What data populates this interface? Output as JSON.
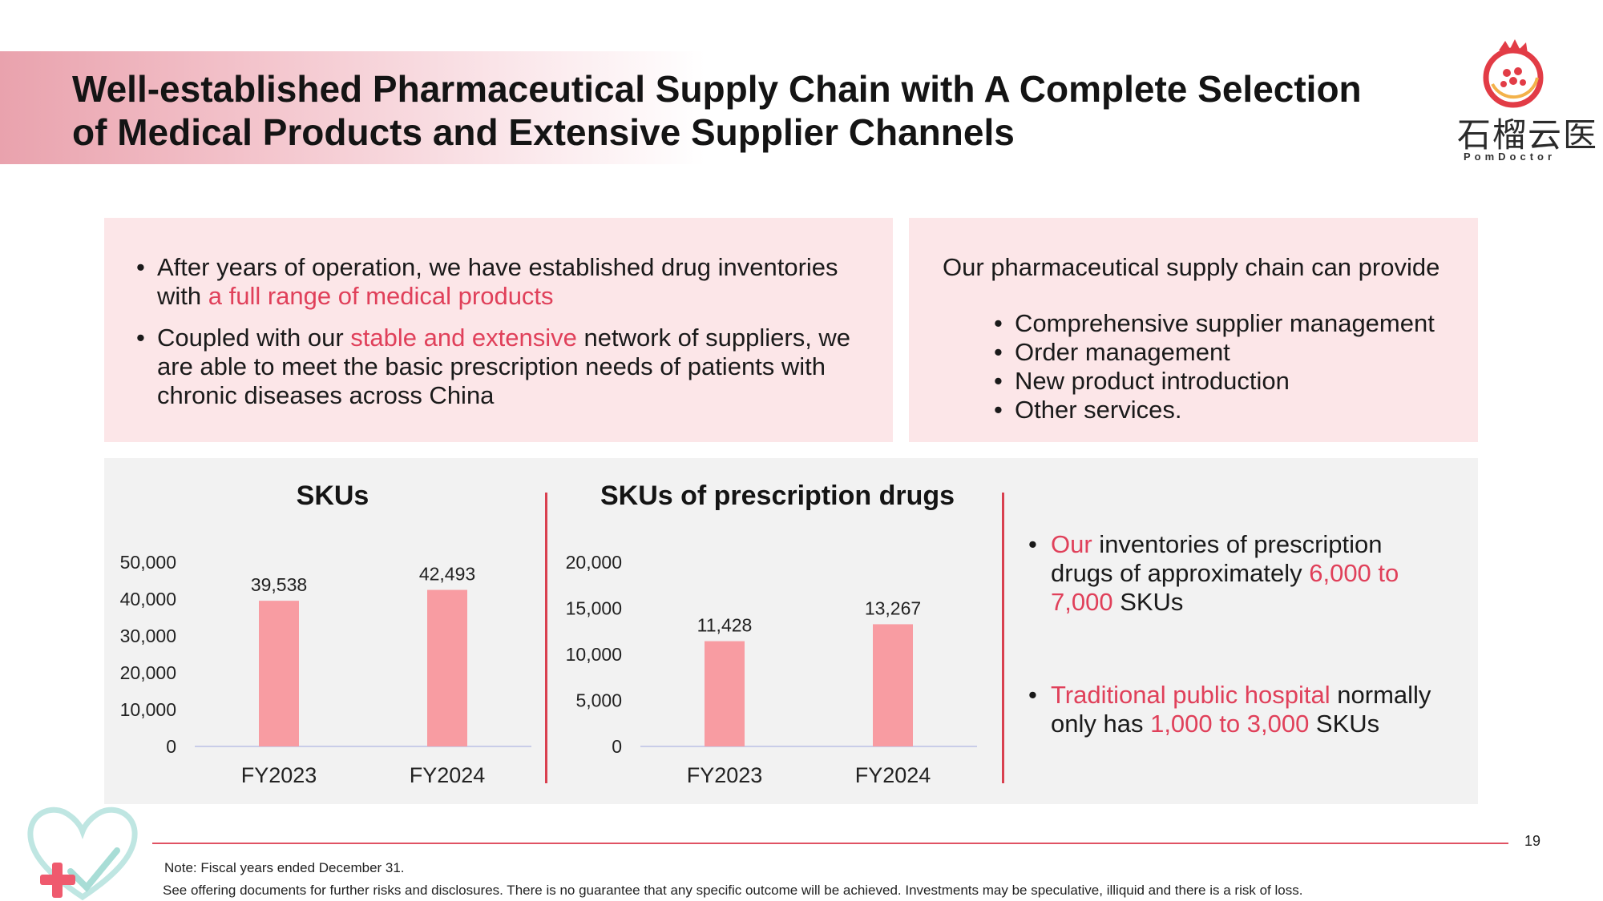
{
  "header": {
    "title_line1": "Well-established Pharmaceutical Supply Chain with A Complete Selection",
    "title_line2": "of Medical Products and Extensive Supplier Channels"
  },
  "logo": {
    "chinese_text": "石榴云医",
    "english_text": "PomDoctor",
    "icon": "pomegranate-icon"
  },
  "left_box": {
    "bullet1_pre": "After years of operation, we have established drug inventories with ",
    "bullet1_highlight": "a full range of medical products",
    "bullet2_pre": "Coupled with our ",
    "bullet2_highlight": "stable and extensive",
    "bullet2_post": " network of suppliers, we are able to meet the basic prescription needs of patients with chronic diseases across China"
  },
  "right_box": {
    "intro": "Our pharmaceutical supply chain can provide",
    "items": [
      "Comprehensive supplier management",
      "Order management",
      "New product introduction",
      "Other services."
    ]
  },
  "colors": {
    "accent": "#e0405a",
    "bar": "#f89ca2",
    "box_bg": "#fce6e8",
    "panel_bg": "#f2f2f2"
  },
  "chart_data": [
    {
      "type": "bar",
      "title": "SKUs",
      "categories": [
        "FY2023",
        "FY2024"
      ],
      "values": [
        39538,
        42493
      ],
      "value_labels": [
        "39,538",
        "42,493"
      ],
      "yticks": [
        "0",
        "10,000",
        "20,000",
        "30,000",
        "40,000",
        "50,000"
      ],
      "ylim": [
        0,
        50000
      ],
      "grid": false,
      "legend": "none"
    },
    {
      "type": "bar",
      "title": "SKUs of prescription drugs",
      "categories": [
        "FY2023",
        "FY2024"
      ],
      "values": [
        11428,
        13267
      ],
      "value_labels": [
        "11,428",
        "13,267"
      ],
      "yticks": [
        "0",
        "5,000",
        "10,000",
        "15,000",
        "20,000"
      ],
      "ylim": [
        0,
        20000
      ],
      "grid": false,
      "legend": "none"
    }
  ],
  "right_notes": {
    "n1_hl1": "Our",
    "n1_t1": " inventories of prescription drugs of approximately ",
    "n1_hl2": "6,000 to 7,000",
    "n1_t2": " SKUs",
    "n2_hl1": "Traditional public hospital",
    "n2_t1": " normally only has ",
    "n2_hl2": "1,000 to 3,000",
    "n2_t2": " SKUs"
  },
  "footer": {
    "page_number": "19",
    "note": "Note: Fiscal years ended December 31.",
    "disclaimer": "See offering documents for further risks and disclosures. There is no guarantee that any specific outcome will be achieved. Investments may be speculative, illiquid and there is a risk of loss."
  },
  "decoration": {
    "icon": "heart-cross-icon"
  }
}
